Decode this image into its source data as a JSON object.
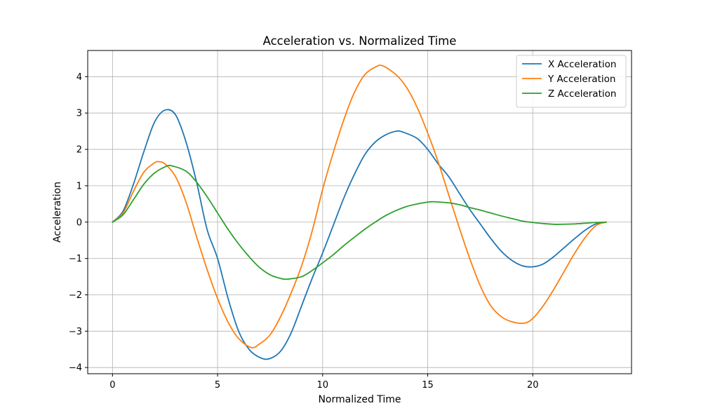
{
  "chart_data": {
    "type": "line",
    "title": "Acceleration vs. Normalized Time",
    "xlabel": "Normalized Time",
    "ylabel": "Acceleration",
    "xlim": [
      -1.18,
      24.7
    ],
    "ylim": [
      -4.17,
      4.72
    ],
    "xticks": [
      0,
      5,
      10,
      15,
      20
    ],
    "yticks": [
      -4,
      -3,
      -2,
      -1,
      0,
      1,
      2,
      3,
      4
    ],
    "grid": true,
    "legend_position": "top-right",
    "series": [
      {
        "name": "X Acceleration",
        "color": "#1f77b4",
        "x": [
          0,
          0.5,
          1.0,
          1.5,
          2.0,
          2.5,
          3.0,
          3.5,
          4.0,
          4.5,
          5.0,
          5.5,
          6.0,
          6.5,
          7.0,
          7.45,
          8.0,
          8.5,
          9.0,
          9.5,
          10.0,
          10.5,
          11.0,
          11.5,
          12.0,
          12.5,
          13.0,
          13.5,
          13.8,
          14.5,
          15.0,
          15.5,
          16.0,
          16.5,
          17.0,
          17.5,
          18.0,
          18.5,
          19.0,
          19.5,
          20.0,
          20.5,
          21.0,
          21.5,
          22.0,
          22.5,
          23.0,
          23.5
        ],
        "y": [
          0,
          0.3,
          1.05,
          1.95,
          2.75,
          3.08,
          2.95,
          2.2,
          1.1,
          -0.2,
          -1.0,
          -2.1,
          -3.0,
          -3.5,
          -3.72,
          -3.76,
          -3.55,
          -3.05,
          -2.3,
          -1.55,
          -0.85,
          -0.1,
          0.65,
          1.3,
          1.85,
          2.2,
          2.4,
          2.5,
          2.48,
          2.3,
          2.0,
          1.6,
          1.25,
          0.8,
          0.35,
          -0.05,
          -0.45,
          -0.8,
          -1.05,
          -1.2,
          -1.23,
          -1.15,
          -0.95,
          -0.7,
          -0.45,
          -0.22,
          -0.05,
          0
        ]
      },
      {
        "name": "Y Acceleration",
        "color": "#ff7f0e",
        "x": [
          0,
          0.5,
          1.0,
          1.5,
          2.0,
          2.2,
          2.5,
          3.0,
          3.5,
          4.0,
          4.5,
          5.0,
          5.5,
          6.0,
          6.6,
          7.0,
          7.5,
          8.0,
          8.5,
          9.0,
          9.5,
          10.0,
          10.5,
          11.0,
          11.5,
          12.0,
          12.5,
          12.85,
          13.5,
          14.0,
          14.5,
          15.0,
          15.5,
          16.0,
          16.5,
          17.0,
          17.5,
          18.0,
          18.5,
          19.0,
          19.6,
          20.0,
          20.5,
          21.0,
          21.5,
          22.0,
          22.5,
          23.0,
          23.5
        ],
        "y": [
          0,
          0.25,
          0.85,
          1.38,
          1.63,
          1.66,
          1.6,
          1.25,
          0.55,
          -0.4,
          -1.3,
          -2.1,
          -2.75,
          -3.2,
          -3.45,
          -3.35,
          -3.1,
          -2.6,
          -1.95,
          -1.2,
          -0.25,
          0.9,
          1.9,
          2.8,
          3.55,
          4.05,
          4.26,
          4.3,
          4.05,
          3.7,
          3.15,
          2.45,
          1.65,
          0.75,
          -0.15,
          -1.0,
          -1.75,
          -2.3,
          -2.6,
          -2.74,
          -2.78,
          -2.65,
          -2.3,
          -1.85,
          -1.35,
          -0.85,
          -0.42,
          -0.1,
          0
        ]
      },
      {
        "name": "Z Acceleration",
        "color": "#2ca02c",
        "x": [
          0,
          0.5,
          1.0,
          1.5,
          2.0,
          2.5,
          2.8,
          3.5,
          4.0,
          4.5,
          5.0,
          5.5,
          6.0,
          6.5,
          7.0,
          7.5,
          8.0,
          8.3,
          9.0,
          9.5,
          10.0,
          10.5,
          11.0,
          11.5,
          12.0,
          12.5,
          13.0,
          13.5,
          14.0,
          14.5,
          15.0,
          15.3,
          16.0,
          16.5,
          17.0,
          17.5,
          18.0,
          18.5,
          19.0,
          19.5,
          20.0,
          20.5,
          21.0,
          21.3,
          22.0,
          22.5,
          23.0,
          23.5
        ],
        "y": [
          0,
          0.2,
          0.62,
          1.05,
          1.35,
          1.52,
          1.55,
          1.4,
          1.1,
          0.7,
          0.25,
          -0.2,
          -0.6,
          -0.95,
          -1.25,
          -1.45,
          -1.55,
          -1.57,
          -1.5,
          -1.33,
          -1.12,
          -0.9,
          -0.65,
          -0.42,
          -0.2,
          0.0,
          0.18,
          0.32,
          0.43,
          0.5,
          0.55,
          0.56,
          0.53,
          0.48,
          0.4,
          0.33,
          0.25,
          0.17,
          0.1,
          0.03,
          -0.01,
          -0.04,
          -0.06,
          -0.06,
          -0.05,
          -0.03,
          -0.01,
          0
        ]
      }
    ]
  }
}
